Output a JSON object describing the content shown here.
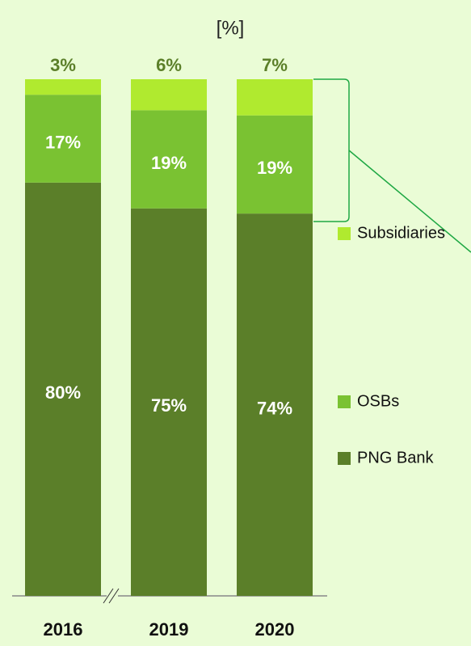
{
  "chart_data": {
    "type": "stacked_bar",
    "title": "[%]",
    "categories": [
      "2016",
      "2019",
      "2020"
    ],
    "series": [
      {
        "name": "PNG Bank",
        "color": "#5b7f29",
        "values": [
          80,
          75,
          74
        ],
        "value_labels": [
          "80%",
          "75%",
          "74%"
        ]
      },
      {
        "name": "OSBs",
        "color": "#7ac232",
        "values": [
          17,
          19,
          19
        ],
        "value_labels": [
          "17%",
          "19%",
          "19%"
        ]
      },
      {
        "name": "Subsidiaries",
        "color": "#b0ea2f",
        "values": [
          3,
          6,
          7
        ],
        "value_labels": [
          "3%",
          "6%",
          "7%"
        ]
      }
    ],
    "ylim": [
      0,
      100
    ]
  }
}
